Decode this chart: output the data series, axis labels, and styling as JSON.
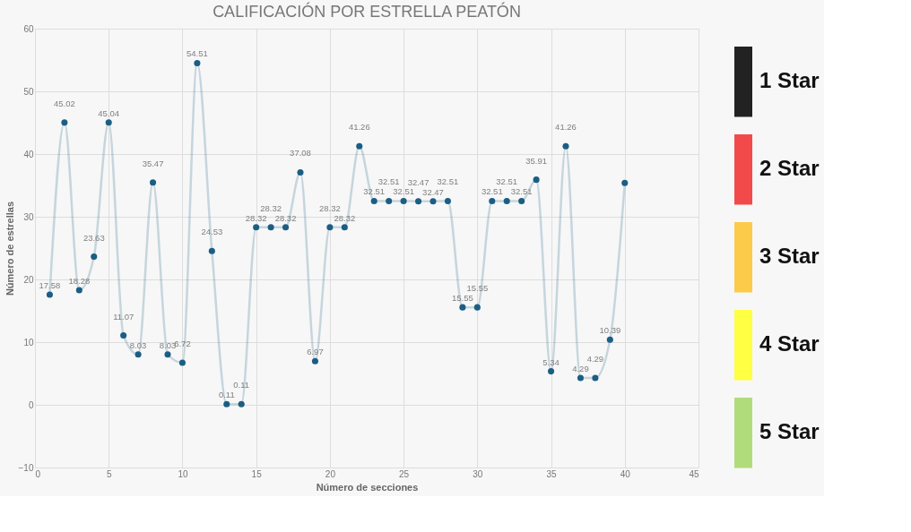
{
  "chart_data": {
    "type": "line",
    "title": "CALIFICACIÓN POR ESTRELLA PEATÓN",
    "xlabel": "Número de secciones",
    "ylabel": "Número de estrellas",
    "x": [
      1,
      2,
      3,
      4,
      5,
      6,
      7,
      8,
      9,
      10,
      11,
      12,
      13,
      14,
      15,
      16,
      17,
      18,
      19,
      20,
      21,
      22,
      23,
      24,
      25,
      26,
      27,
      28,
      29,
      30,
      31,
      32,
      33,
      34,
      35,
      36,
      37,
      38,
      39,
      40
    ],
    "series": [
      {
        "color": "#1b5e84",
        "values": [
          17.58,
          45.02,
          18.28,
          23.63,
          45.04,
          11.07,
          8.03,
          35.47,
          8.03,
          6.72,
          54.51,
          24.53,
          0.11,
          0.11,
          28.32,
          28.32,
          28.32,
          37.08,
          6.97,
          28.32,
          28.32,
          41.26,
          32.51,
          32.51,
          32.51,
          32.47,
          32.47,
          32.51,
          15.55,
          15.55,
          32.51,
          32.51,
          32.51,
          35.91,
          5.34,
          41.26,
          4.29,
          4.29,
          10.39,
          35.4
        ],
        "value_labels": [
          "17.58",
          "45.02",
          "18.28",
          "23.63",
          "45.04",
          "11.07",
          "8.03",
          "35.47",
          "8.03",
          "6.72",
          "54.51",
          "24.53",
          "0.11",
          "0.11",
          "28.32",
          "28.32",
          "28.32",
          "37.08",
          "6.97",
          "28.32",
          "28.32",
          "41.26",
          "32.51",
          "32.51",
          "32.51",
          "32.47",
          "32.47",
          "32.51",
          "15.55",
          "15.55",
          "32.51",
          "32.51",
          "32.51",
          "35.91",
          "5.34",
          "41.26",
          "4.29",
          "4.29",
          "10.39",
          null
        ]
      }
    ],
    "xlim": [
      0,
      45
    ],
    "xticks": [
      0,
      5,
      10,
      15,
      20,
      25,
      30,
      35,
      40,
      45
    ],
    "ylim": [
      -10,
      60
    ],
    "yticks": [
      -10,
      0,
      10,
      20,
      30,
      40,
      50,
      60
    ],
    "grid": true,
    "marker": "circle",
    "line_style": "solid",
    "annotations": [
      "1 Star",
      "2 Star",
      "3 Star",
      "4 Star",
      "5 Star"
    ]
  }
}
